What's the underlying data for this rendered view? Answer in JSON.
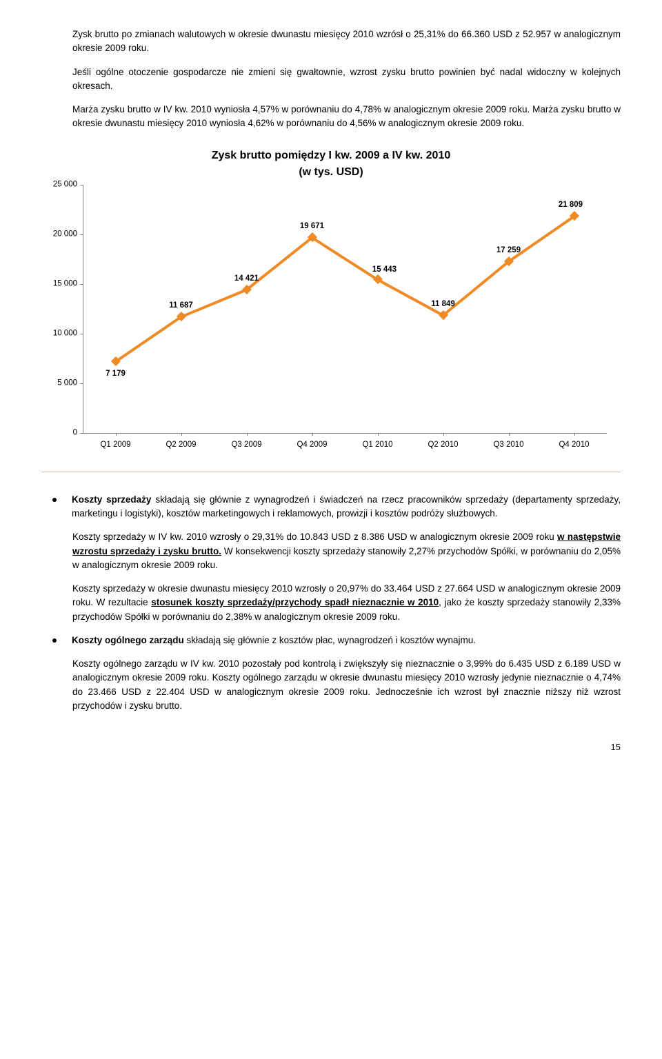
{
  "para1": "Zysk brutto po zmianach walutowych w okresie dwunastu miesięcy 2010 wzrósł o 25,31% do 66.360 USD z 52.957 w analogicznym okresie 2009 roku.",
  "para2": "Jeśli ogólne otoczenie gospodarcze nie zmieni się gwałtownie, wzrost zysku brutto powinien być nadal widoczny w kolejnych okresach.",
  "para3": "Marża zysku brutto w IV kw. 2010 wyniosła 4,57% w porównaniu do 4,78% w analogicznym okresie 2009 roku. Marża zysku brutto w okresie dwunastu miesięcy 2010 wyniosła 4,62% w porównaniu do 4,56% w analogicznym okresie 2009 roku.",
  "chart": {
    "type": "line",
    "title_line1": "Zysk brutto pomiędzy I kw. 2009 a IV kw. 2010",
    "title_line2": "(w tys. USD)",
    "categories": [
      "Q1 2009",
      "Q2 2009",
      "Q3 2009",
      "Q4 2009",
      "Q1 2010",
      "Q2 2010",
      "Q3 2010",
      "Q4 2010"
    ],
    "values": [
      7179,
      11687,
      14421,
      19671,
      15443,
      11849,
      17259,
      21809
    ],
    "labels": [
      "7 179",
      "11 687",
      "14 421",
      "19 671",
      "15 443",
      "11 849",
      "17 259",
      "21 809"
    ],
    "line_color": "#f08a24",
    "marker_color": "#f08a24",
    "marker_size": 10,
    "line_width": 4,
    "ymin": 0,
    "ymax": 25000,
    "ytick_step": 5000,
    "yticks": [
      "0",
      "5 000",
      "10 000",
      "15 000",
      "20 000",
      "25 000"
    ],
    "background_color": "#ffffff",
    "axis_color": "#808080",
    "label_fontsize": 11.5
  },
  "bullet1_bold": "Koszty sprzedaży",
  "bullet1_rest": " składają się głównie z wynagrodzeń i świadczeń na rzecz pracowników sprzedaży (departamenty sprzedaży, marketingu i logistyki), kosztów marketingowych i reklamowych, prowizji i kosztów podróży służbowych.",
  "para4a": "Koszty sprzedaży w IV kw. 2010 wzrosły o 29,31% do 10.843 USD z 8.386 USD w analogicznym okresie 2009 roku ",
  "para4u": "w następstwie wzrostu sprzedaży i zysku brutto.",
  "para4b": " W konsekwencji koszty sprzedaży stanowiły 2,27% przychodów Spółki, w porównaniu do 2,05% w analogicznym okresie 2009 roku.",
  "para5a": "Koszty sprzedaży w okresie dwunastu miesięcy 2010 wzrosły o 20,97% do 33.464 USD z 27.664 USD w analogicznym okresie 2009 roku. W rezultacie ",
  "para5u": "stosunek koszty sprzedaży/przychody spadł nieznacznie w 2010",
  "para5b": ", jako że koszty sprzedaży stanowiły 2,33% przychodów Spółki w porównaniu do 2,38% w analogicznym okresie 2009 roku.",
  "bullet2_bold": "Koszty ogólnego zarządu",
  "bullet2_rest": " składają się głównie z kosztów płac, wynagrodzeń i kosztów wynajmu.",
  "para6": "Koszty ogólnego zarządu w IV kw. 2010 pozostały pod kontrolą i zwiększyły się nieznacznie o 3,99% do 6.435 USD z 6.189 USD w analogicznym okresie 2009 roku. Koszty ogólnego zarządu w okresie dwunastu miesięcy 2010 wzrosły jedynie nieznacznie o 4,74% do 23.466 USD z 22.404 USD w analogicznym okresie 2009 roku. Jednocześnie ich wzrost był znacznie niższy niż wzrost przychodów i zysku brutto.",
  "page_number": "15"
}
